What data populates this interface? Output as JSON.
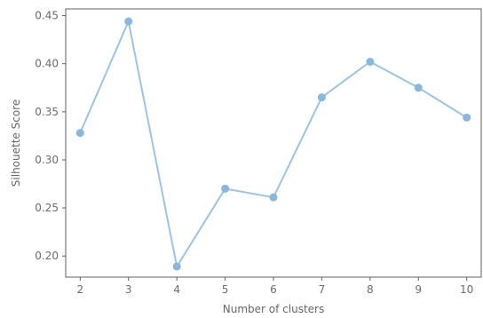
{
  "chart_data": {
    "type": "line",
    "title": "",
    "xlabel": "Number of clusters",
    "ylabel": "Silhouette Score",
    "x": [
      2,
      3,
      4,
      5,
      6,
      7,
      8,
      9,
      10
    ],
    "series": [
      {
        "values": [
          0.328,
          0.444,
          0.189,
          0.27,
          0.261,
          0.365,
          0.402,
          0.375,
          0.344
        ]
      }
    ],
    "xlim": [
      1.7,
      10.3
    ],
    "ylim": [
      0.178,
      0.457
    ],
    "xticks": [
      "2",
      "3",
      "4",
      "5",
      "6",
      "7",
      "8",
      "9",
      "10"
    ],
    "yticks": [
      "0.20",
      "0.25",
      "0.30",
      "0.35",
      "0.40",
      "0.45"
    ],
    "grid": false,
    "colors": {
      "line": "#9dc3e0",
      "marker": "#8ab8da",
      "axis": "#5f5f5f",
      "tick_text": "#6b6b6b",
      "label_text": "#666666"
    }
  }
}
